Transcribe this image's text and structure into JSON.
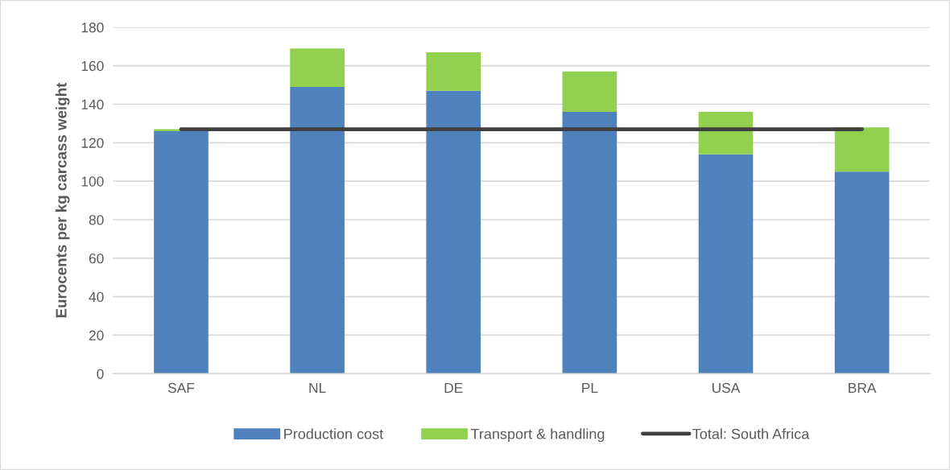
{
  "chart_data": {
    "type": "bar",
    "ylabel": "Eurocents per kg carcass weight",
    "categories": [
      "SAF",
      "NL",
      "DE",
      "PL",
      "USA",
      "BRA"
    ],
    "stacked": true,
    "series": [
      {
        "name": "Production cost",
        "color": "#4f81bd",
        "values": [
          126,
          149,
          147,
          136,
          114,
          105
        ]
      },
      {
        "name": "Transport & handling",
        "color": "#92d050",
        "values": [
          1,
          20,
          20,
          21,
          22,
          23
        ]
      },
      {
        "name": "Total: South Africa",
        "type": "line",
        "color": "#404040",
        "values": [
          127,
          127,
          127,
          127,
          127,
          127
        ]
      }
    ],
    "ylim": [
      0,
      180
    ],
    "yticks": [
      0,
      20,
      40,
      60,
      80,
      100,
      120,
      140,
      160,
      180
    ],
    "grid": "y",
    "legend": "bottom"
  }
}
